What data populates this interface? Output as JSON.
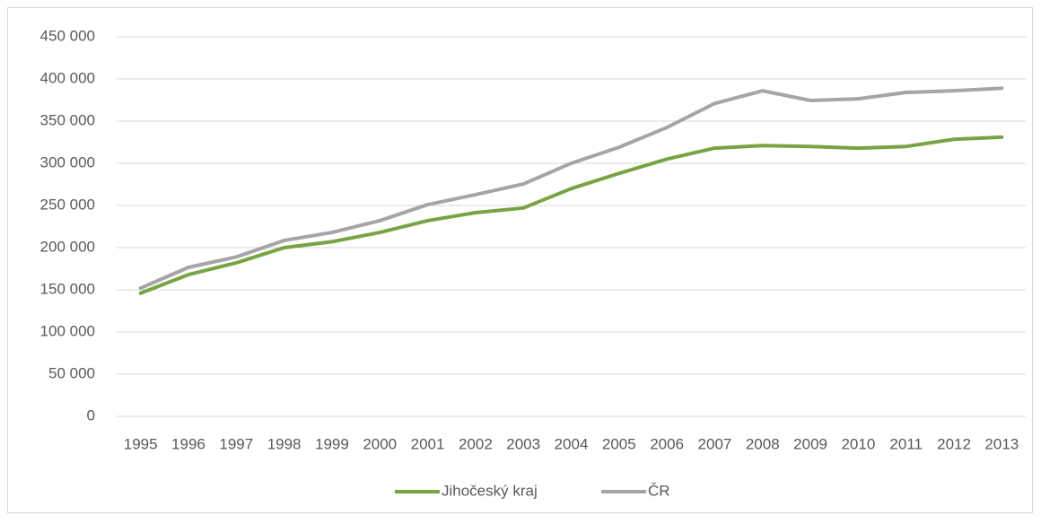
{
  "chart_data": {
    "type": "line",
    "categories": [
      "1995",
      "1996",
      "1997",
      "1998",
      "1999",
      "2000",
      "2001",
      "2002",
      "2003",
      "2004",
      "2005",
      "2006",
      "2007",
      "2008",
      "2009",
      "2010",
      "2011",
      "2012",
      "2013"
    ],
    "series": [
      {
        "name": "Jihočeský kraj",
        "color": "#78a343",
        "values": [
          146000,
          168000,
          182000,
          200000,
          207000,
          218000,
          232000,
          241500,
          247000,
          270000,
          288000,
          305000,
          318000,
          321000,
          320000,
          318000,
          320000,
          328500,
          331000
        ]
      },
      {
        "name": "ČR",
        "color": "#a5a5a5",
        "values": [
          152000,
          176600,
          189000,
          208500,
          218000,
          232000,
          251000,
          262800,
          275500,
          300000,
          319000,
          342500,
          371000,
          386000,
          374500,
          376500,
          384000,
          386000,
          389000
        ]
      }
    ],
    "ylim": [
      0,
      450000
    ],
    "yticks": [
      0,
      {
        "value": 50000,
        "label": "50 000"
      },
      {
        "value": 100000,
        "label": "100 000"
      },
      {
        "value": 150000,
        "label": "150 000"
      },
      {
        "value": 200000,
        "label": "200 000"
      },
      {
        "value": 250000,
        "label": "250 000"
      },
      {
        "value": 300000,
        "label": "300 000"
      },
      {
        "value": 350000,
        "label": "350 000"
      },
      {
        "value": 400000,
        "label": "400 000"
      },
      {
        "value": 450000,
        "label": "450 000"
      }
    ],
    "grid": true,
    "legend": "bottom"
  }
}
